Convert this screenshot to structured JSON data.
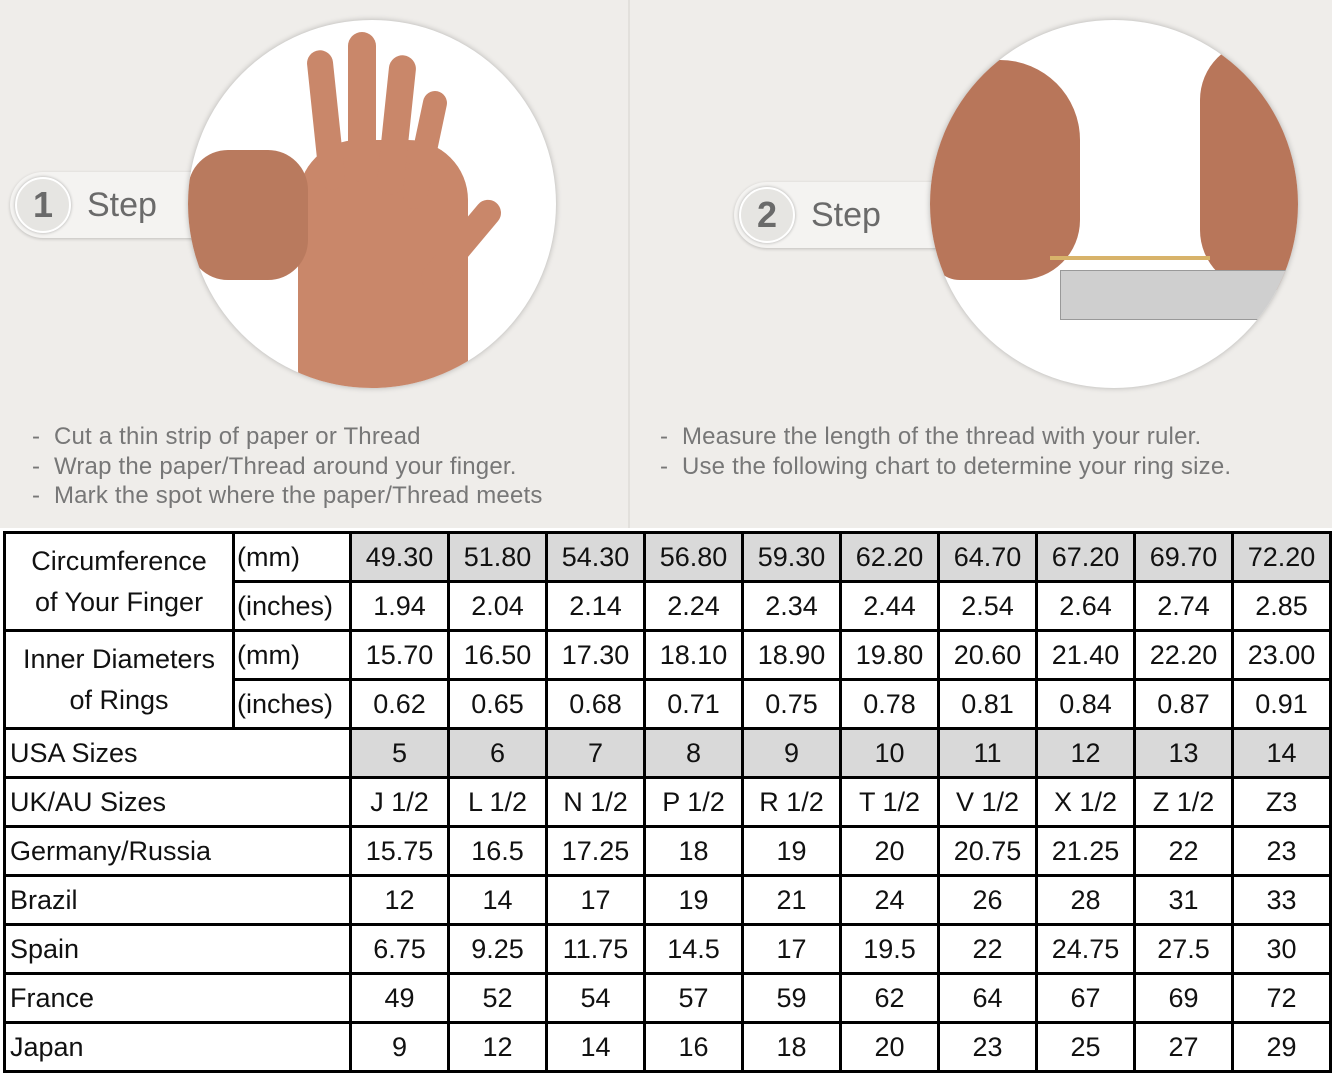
{
  "steps": [
    {
      "number": "1",
      "label": "Step",
      "instructions": [
        "Cut a thin strip of paper or Thread",
        "Wrap the paper/Thread around your finger.",
        "Mark the spot where the paper/Thread meets"
      ]
    },
    {
      "number": "2",
      "label": "Step",
      "instructions": [
        "Measure the length of the thread with your ruler.",
        "Use the following chart to determine your ring size."
      ]
    }
  ],
  "table": {
    "shade_color": "#d9d9d9",
    "groups": [
      {
        "label": [
          "Circumference",
          "of Your Finger"
        ],
        "rows": [
          {
            "unit": "(mm)",
            "values": [
              "49.30",
              "51.80",
              "54.30",
              "56.80",
              "59.30",
              "62.20",
              "64.70",
              "67.20",
              "69.70",
              "72.20"
            ],
            "shaded": true
          },
          {
            "unit": "(inches)",
            "values": [
              "1.94",
              "2.04",
              "2.14",
              "2.24",
              "2.34",
              "2.44",
              "2.54",
              "2.64",
              "2.74",
              "2.85"
            ],
            "shaded": false
          }
        ]
      },
      {
        "label": [
          "Inner Diameters",
          "of Rings"
        ],
        "rows": [
          {
            "unit": "(mm)",
            "values": [
              "15.70",
              "16.50",
              "17.30",
              "18.10",
              "18.90",
              "19.80",
              "20.60",
              "21.40",
              "22.20",
              "23.00"
            ],
            "shaded": false
          },
          {
            "unit": "(inches)",
            "values": [
              "0.62",
              "0.65",
              "0.68",
              "0.71",
              "0.75",
              "0.78",
              "0.81",
              "0.84",
              "0.87",
              "0.91"
            ],
            "shaded": false
          }
        ]
      }
    ],
    "rows": [
      {
        "label": "USA Sizes",
        "values": [
          "5",
          "6",
          "7",
          "8",
          "9",
          "10",
          "11",
          "12",
          "13",
          "14"
        ],
        "shaded": true
      },
      {
        "label": "UK/AU Sizes",
        "values": [
          "J 1/2",
          "L 1/2",
          "N 1/2",
          "P 1/2",
          "R 1/2",
          "T 1/2",
          "V 1/2",
          "X 1/2",
          "Z 1/2",
          "Z3"
        ],
        "shaded": false
      },
      {
        "label": "Germany/Russia",
        "values": [
          "15.75",
          "16.5",
          "17.25",
          "18",
          "19",
          "20",
          "20.75",
          "21.25",
          "22",
          "23"
        ],
        "shaded": false
      },
      {
        "label": "Brazil",
        "values": [
          "12",
          "14",
          "17",
          "19",
          "21",
          "24",
          "26",
          "28",
          "31",
          "33"
        ],
        "shaded": false
      },
      {
        "label": "Spain",
        "values": [
          "6.75",
          "9.25",
          "11.75",
          "14.5",
          "17",
          "19.5",
          "22",
          "24.75",
          "27.5",
          "30"
        ],
        "shaded": false
      },
      {
        "label": "France",
        "values": [
          "49",
          "52",
          "54",
          "57",
          "59",
          "62",
          "64",
          "67",
          "69",
          "72"
        ],
        "shaded": false
      },
      {
        "label": "Japan",
        "values": [
          "9",
          "12",
          "14",
          "16",
          "18",
          "20",
          "23",
          "25",
          "27",
          "29"
        ],
        "shaded": false
      }
    ]
  }
}
